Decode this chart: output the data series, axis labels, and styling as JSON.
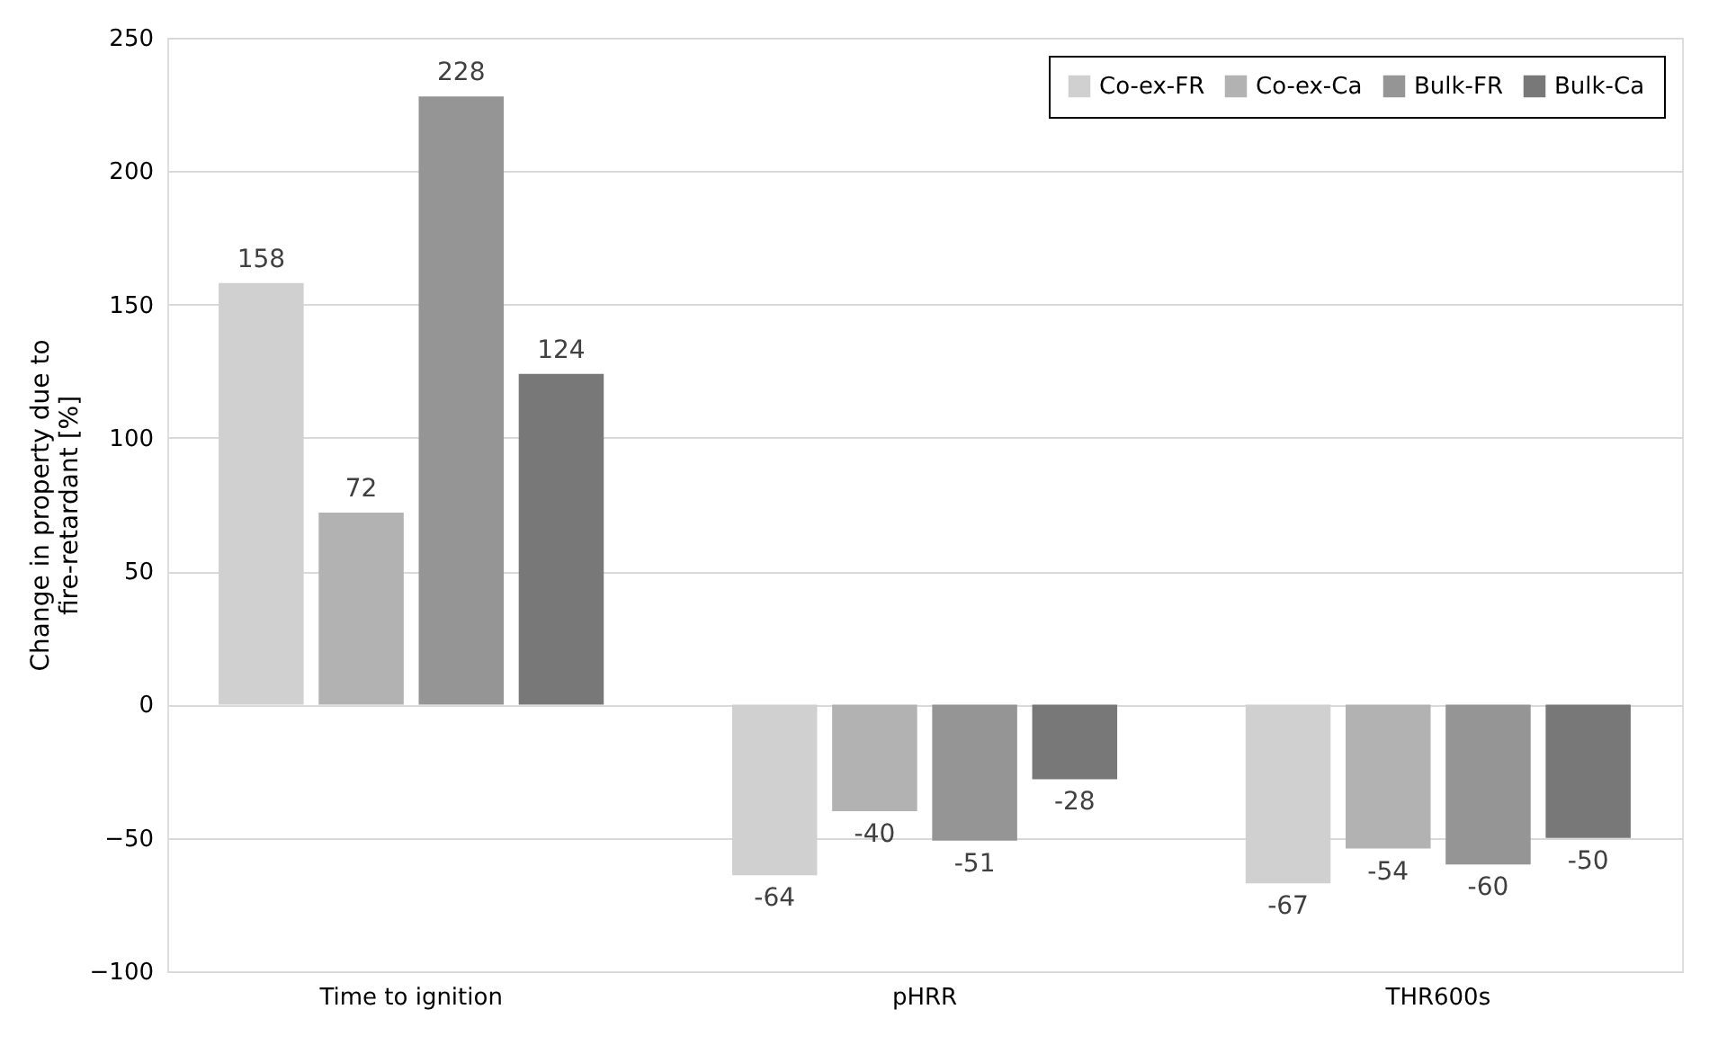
{
  "chart_data": {
    "type": "bar",
    "ylabel": "Change in property due to fire-retardant [%]",
    "categories": [
      "Time to ignition",
      "pHRR",
      "THR600s"
    ],
    "series": [
      {
        "name": "Co-ex-FR",
        "color": "#d0d0d0",
        "values": [
          158,
          -64,
          -67
        ]
      },
      {
        "name": "Co-ex-Ca",
        "color": "#b2b2b2",
        "values": [
          72,
          -40,
          -54
        ]
      },
      {
        "name": "Bulk-FR",
        "color": "#959595",
        "values": [
          228,
          -51,
          -60
        ]
      },
      {
        "name": "Bulk-Ca",
        "color": "#787878",
        "values": [
          124,
          -28,
          -50
        ]
      }
    ],
    "ylim": [
      -100,
      250
    ],
    "yticks": [
      -100,
      -50,
      0,
      50,
      100,
      150,
      200,
      250
    ],
    "grid": "y",
    "legend": "top right",
    "data_labels": true
  }
}
